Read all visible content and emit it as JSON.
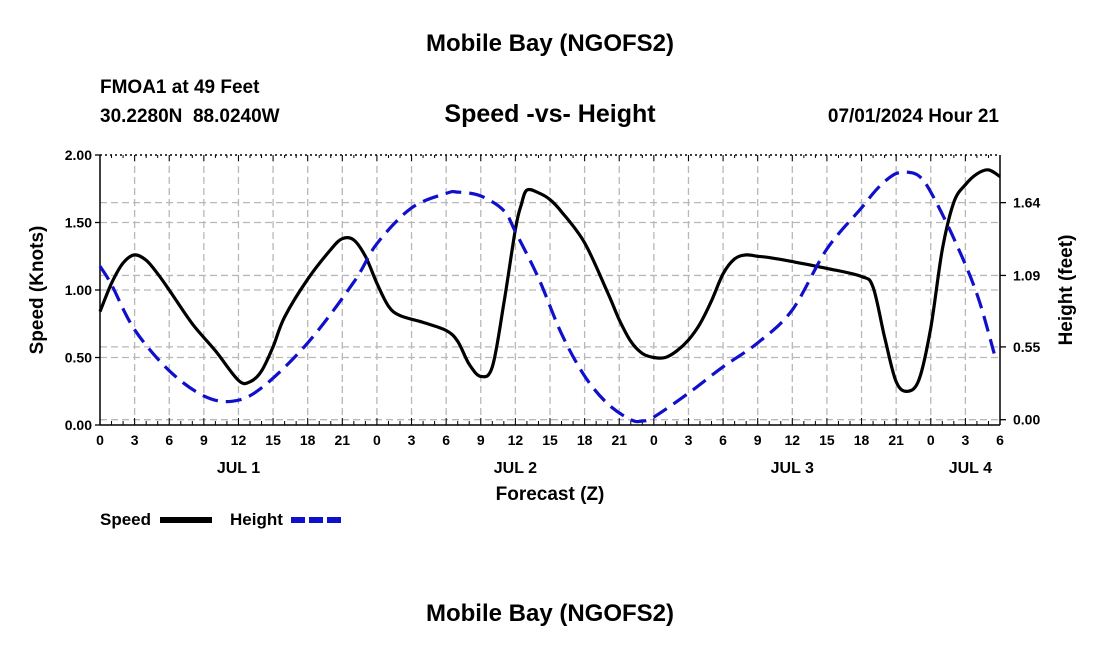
{
  "header": {
    "title": "Mobile Bay (NGOFS2)",
    "station": "FMOA1 at 49 Feet",
    "coords": "30.2280N  88.0240W",
    "datetime": "07/01/2024 Hour 21",
    "footer_title": "Mobile Bay (NGOFS2)"
  },
  "chart_data": {
    "type": "line",
    "title": "Speed -vs- Height",
    "xlabel": "Forecast (Z)",
    "ylabel": "Speed (Knots)",
    "y2label": "Height (feet)",
    "x_unit": "hours",
    "xlim": [
      0,
      78
    ],
    "ylim": [
      0,
      2.0
    ],
    "y2lim": [
      -0.04,
      2.0
    ],
    "x_ticks": [
      {
        "x": 0,
        "label": "0"
      },
      {
        "x": 3,
        "label": "3"
      },
      {
        "x": 6,
        "label": "6"
      },
      {
        "x": 9,
        "label": "9"
      },
      {
        "x": 12,
        "label": "12"
      },
      {
        "x": 15,
        "label": "15"
      },
      {
        "x": 18,
        "label": "18"
      },
      {
        "x": 21,
        "label": "21"
      },
      {
        "x": 24,
        "label": "0"
      },
      {
        "x": 27,
        "label": "3"
      },
      {
        "x": 30,
        "label": "6"
      },
      {
        "x": 33,
        "label": "9"
      },
      {
        "x": 36,
        "label": "12"
      },
      {
        "x": 39,
        "label": "15"
      },
      {
        "x": 42,
        "label": "18"
      },
      {
        "x": 45,
        "label": "21"
      },
      {
        "x": 48,
        "label": "0"
      },
      {
        "x": 51,
        "label": "3"
      },
      {
        "x": 54,
        "label": "6"
      },
      {
        "x": 57,
        "label": "9"
      },
      {
        "x": 60,
        "label": "12"
      },
      {
        "x": 63,
        "label": "15"
      },
      {
        "x": 66,
        "label": "18"
      },
      {
        "x": 69,
        "label": "21"
      },
      {
        "x": 72,
        "label": "0"
      },
      {
        "x": 75,
        "label": "3"
      },
      {
        "x": 78,
        "label": "6"
      }
    ],
    "date_labels": [
      {
        "x": 12,
        "label": "JUL 1"
      },
      {
        "x": 36,
        "label": "JUL 2"
      },
      {
        "x": 60,
        "label": "JUL 3"
      },
      {
        "x": 78,
        "label": "JUL 4"
      }
    ],
    "y_ticks": [
      {
        "v": 0.0,
        "label": "0.00"
      },
      {
        "v": 0.5,
        "label": "0.50"
      },
      {
        "v": 1.0,
        "label": "1.00"
      },
      {
        "v": 1.5,
        "label": "1.50"
      },
      {
        "v": 2.0,
        "label": "2.00"
      }
    ],
    "y2_ticks": [
      {
        "v": 0.0,
        "label": "0.00"
      },
      {
        "v": 0.55,
        "label": "0.55"
      },
      {
        "v": 1.09,
        "label": "1.09"
      },
      {
        "v": 1.64,
        "label": "1.64"
      }
    ],
    "legend": [
      {
        "name": "Speed",
        "color": "#000000",
        "dash": "solid"
      },
      {
        "name": "Height",
        "color": "#1010cc",
        "dash": "dashed"
      }
    ],
    "series": [
      {
        "name": "Speed",
        "axis": "left",
        "color": "#000000",
        "x": [
          0,
          1,
          2,
          3,
          4,
          5,
          6,
          8,
          10,
          12,
          13,
          14,
          15,
          16,
          18,
          20,
          21,
          22,
          23,
          24,
          25,
          26,
          28,
          30,
          31,
          32,
          33,
          34,
          35,
          36,
          36.5,
          37,
          38,
          39,
          40,
          42,
          44,
          45,
          46,
          47,
          48,
          49,
          50,
          51,
          52,
          53,
          54,
          55,
          56,
          57,
          58,
          60,
          63,
          66,
          67,
          68,
          69,
          70,
          71,
          72,
          73,
          74,
          75,
          76,
          77,
          78
        ],
        "y": [
          0.84,
          1.05,
          1.2,
          1.26,
          1.22,
          1.12,
          1.0,
          0.75,
          0.55,
          0.33,
          0.32,
          0.4,
          0.58,
          0.8,
          1.08,
          1.3,
          1.38,
          1.37,
          1.25,
          1.05,
          0.88,
          0.81,
          0.76,
          0.7,
          0.62,
          0.45,
          0.36,
          0.43,
          0.9,
          1.45,
          1.63,
          1.74,
          1.72,
          1.67,
          1.58,
          1.35,
          0.98,
          0.78,
          0.62,
          0.53,
          0.5,
          0.5,
          0.55,
          0.63,
          0.75,
          0.92,
          1.12,
          1.23,
          1.26,
          1.25,
          1.24,
          1.21,
          1.16,
          1.1,
          1.02,
          0.65,
          0.32,
          0.25,
          0.34,
          0.72,
          1.3,
          1.65,
          1.78,
          1.86,
          1.89,
          1.84
        ]
      },
      {
        "name": "Height",
        "axis": "right",
        "color": "#1010cc",
        "x": [
          0,
          1,
          3,
          6,
          9,
          11.5,
          14,
          18,
          22,
          24,
          27,
          30,
          31,
          33,
          35,
          36,
          38,
          40,
          42,
          44,
          46,
          47,
          48,
          51,
          54,
          57,
          60,
          63,
          66,
          67,
          68,
          69,
          70,
          71,
          72,
          74,
          76,
          77.5
        ],
        "y": [
          1.16,
          1.02,
          0.68,
          0.37,
          0.18,
          0.14,
          0.24,
          0.58,
          1.04,
          1.33,
          1.6,
          1.71,
          1.72,
          1.69,
          1.58,
          1.42,
          1.07,
          0.65,
          0.33,
          0.12,
          0.0,
          -0.01,
          0.02,
          0.2,
          0.4,
          0.58,
          0.83,
          1.29,
          1.6,
          1.71,
          1.8,
          1.86,
          1.87,
          1.84,
          1.72,
          1.37,
          0.95,
          0.5
        ]
      }
    ]
  }
}
